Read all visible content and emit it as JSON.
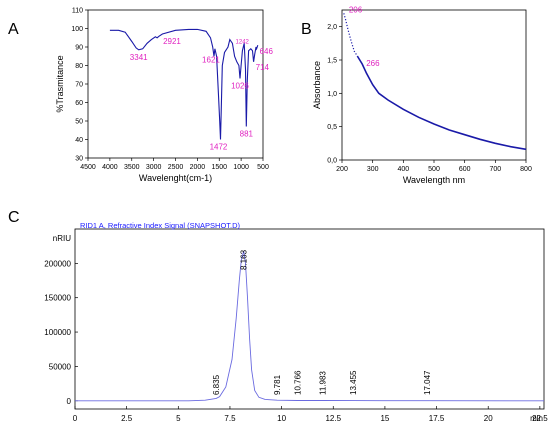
{
  "panels": {
    "a": "A",
    "b": "B",
    "c": "C"
  },
  "chart_data": [
    {
      "id": "A",
      "type": "line",
      "xlabel": "Wavelenght(cm-1)",
      "ylabel": "%Trasmitance",
      "xlim": [
        4500,
        500
      ],
      "ylim": [
        30,
        110
      ],
      "xticks": [
        "4500",
        "4000",
        "3500",
        "3000",
        "2500",
        "2000",
        "1500",
        "1000",
        "500"
      ],
      "yticks": [
        "30",
        "40",
        "50",
        "60",
        "70",
        "80",
        "90",
        "100",
        "110"
      ],
      "color": "#1a1aa8",
      "points": [
        [
          4000,
          99
        ],
        [
          3800,
          99
        ],
        [
          3650,
          98
        ],
        [
          3500,
          93
        ],
        [
          3400,
          89.5
        ],
        [
          3341,
          88.5
        ],
        [
          3250,
          89
        ],
        [
          3150,
          92
        ],
        [
          3050,
          94
        ],
        [
          2960,
          95.5
        ],
        [
          2921,
          95
        ],
        [
          2880,
          95.8
        ],
        [
          2800,
          97
        ],
        [
          2500,
          99
        ],
        [
          2200,
          99.5
        ],
        [
          2000,
          99.5
        ],
        [
          1800,
          98.5
        ],
        [
          1700,
          95
        ],
        [
          1650,
          90
        ],
        [
          1621,
          85
        ],
        [
          1600,
          89
        ],
        [
          1560,
          85
        ],
        [
          1520,
          65
        ],
        [
          1490,
          50
        ],
        [
          1472,
          40
        ],
        [
          1455,
          55
        ],
        [
          1430,
          80
        ],
        [
          1380,
          87
        ],
        [
          1300,
          90
        ],
        [
          1260,
          94
        ],
        [
          1200,
          92
        ],
        [
          1150,
          85
        ],
        [
          1100,
          82
        ],
        [
          1050,
          80
        ],
        [
          1026,
          73
        ],
        [
          1000,
          80
        ],
        [
          970,
          88
        ],
        [
          930,
          92
        ],
        [
          900,
          78
        ],
        [
          881,
          47
        ],
        [
          860,
          72
        ],
        [
          830,
          88
        ],
        [
          780,
          89
        ],
        [
          740,
          88
        ],
        [
          714,
          82
        ],
        [
          690,
          86
        ],
        [
          660,
          90
        ],
        [
          646,
          89
        ],
        [
          620,
          91
        ]
      ],
      "annotations": [
        {
          "text": "3341",
          "x": 3341,
          "y": 88.5,
          "size": "normal"
        },
        {
          "text": "2921",
          "x": 2921,
          "y": 95,
          "size": "normal"
        },
        {
          "text": "1621",
          "x": 1621,
          "y": 85,
          "size": "normal"
        },
        {
          "text": "1242",
          "x": 1242,
          "y": 94,
          "size": "small"
        },
        {
          "text": "1472",
          "x": 1472,
          "y": 40,
          "size": "normal"
        },
        {
          "text": "1026",
          "x": 1026,
          "y": 73,
          "size": "normal"
        },
        {
          "text": "881",
          "x": 881,
          "y": 47,
          "size": "normal"
        },
        {
          "text": "714",
          "x": 714,
          "y": 82,
          "size": "normal"
        },
        {
          "text": "646",
          "x": 646,
          "y": 89,
          "size": "normal"
        }
      ]
    },
    {
      "id": "B",
      "type": "line",
      "xlabel": "Wavelength nm",
      "ylabel": "Absorbance",
      "xlim": [
        200,
        800
      ],
      "ylim": [
        0,
        2.25
      ],
      "xticks": [
        "200",
        "300",
        "400",
        "500",
        "600",
        "700",
        "800"
      ],
      "yticks": [
        "0,0",
        "0,5",
        "1,0",
        "1,5",
        "2,0"
      ],
      "color": "#1a1aa8",
      "dotted_points": [
        [
          206,
          2.2
        ],
        [
          212,
          2.1
        ],
        [
          220,
          1.95
        ],
        [
          230,
          1.78
        ],
        [
          240,
          1.63
        ],
        [
          250,
          1.56
        ]
      ],
      "points": [
        [
          250,
          1.56
        ],
        [
          266,
          1.44
        ],
        [
          280,
          1.3
        ],
        [
          300,
          1.13
        ],
        [
          320,
          1.0
        ],
        [
          350,
          0.9
        ],
        [
          400,
          0.76
        ],
        [
          450,
          0.64
        ],
        [
          500,
          0.54
        ],
        [
          550,
          0.45
        ],
        [
          600,
          0.38
        ],
        [
          650,
          0.31
        ],
        [
          700,
          0.25
        ],
        [
          750,
          0.2
        ],
        [
          800,
          0.16
        ]
      ],
      "annotations": [
        {
          "text": "206",
          "x": 206,
          "y": 2.2
        },
        {
          "text": "266",
          "x": 266,
          "y": 1.44
        }
      ]
    },
    {
      "id": "C",
      "type": "line",
      "title": "RID1 A, Refractive Index Signal (SNAPSHOT.D)",
      "ylabel": "nRIU",
      "xlabel": "min",
      "xlim": [
        0,
        22.7
      ],
      "ylim": [
        -12000,
        250000
      ],
      "xticks": [
        "0",
        "2.5",
        "5",
        "7.5",
        "10",
        "12.5",
        "15",
        "17.5",
        "20",
        "22.5"
      ],
      "yticks": [
        "0",
        "50000",
        "100000",
        "150000",
        "200000"
      ],
      "color": "#6a6ae0",
      "peaks": [
        {
          "label": "6.835",
          "rt": 6.835
        },
        {
          "label": "8.163",
          "rt": 8.163
        },
        {
          "label": "9.781",
          "rt": 9.781
        },
        {
          "label": "10.766",
          "rt": 10.766
        },
        {
          "label": "11.983",
          "rt": 11.983
        },
        {
          "label": "13.455",
          "rt": 13.455
        },
        {
          "label": "17.047",
          "rt": 17.047
        }
      ],
      "points": [
        [
          0,
          0
        ],
        [
          5.5,
          0
        ],
        [
          6.3,
          800
        ],
        [
          6.835,
          3500
        ],
        [
          7.0,
          6000
        ],
        [
          7.3,
          20000
        ],
        [
          7.6,
          60000
        ],
        [
          7.8,
          120000
        ],
        [
          7.95,
          175000
        ],
        [
          8.05,
          205000
        ],
        [
          8.163,
          218000
        ],
        [
          8.25,
          200000
        ],
        [
          8.35,
          150000
        ],
        [
          8.45,
          90000
        ],
        [
          8.55,
          45000
        ],
        [
          8.7,
          15000
        ],
        [
          8.9,
          5000
        ],
        [
          9.2,
          2000
        ],
        [
          9.781,
          800
        ],
        [
          10.766,
          400
        ],
        [
          11.983,
          300
        ],
        [
          13.455,
          200
        ],
        [
          17.047,
          100
        ],
        [
          22.7,
          0
        ]
      ]
    }
  ]
}
